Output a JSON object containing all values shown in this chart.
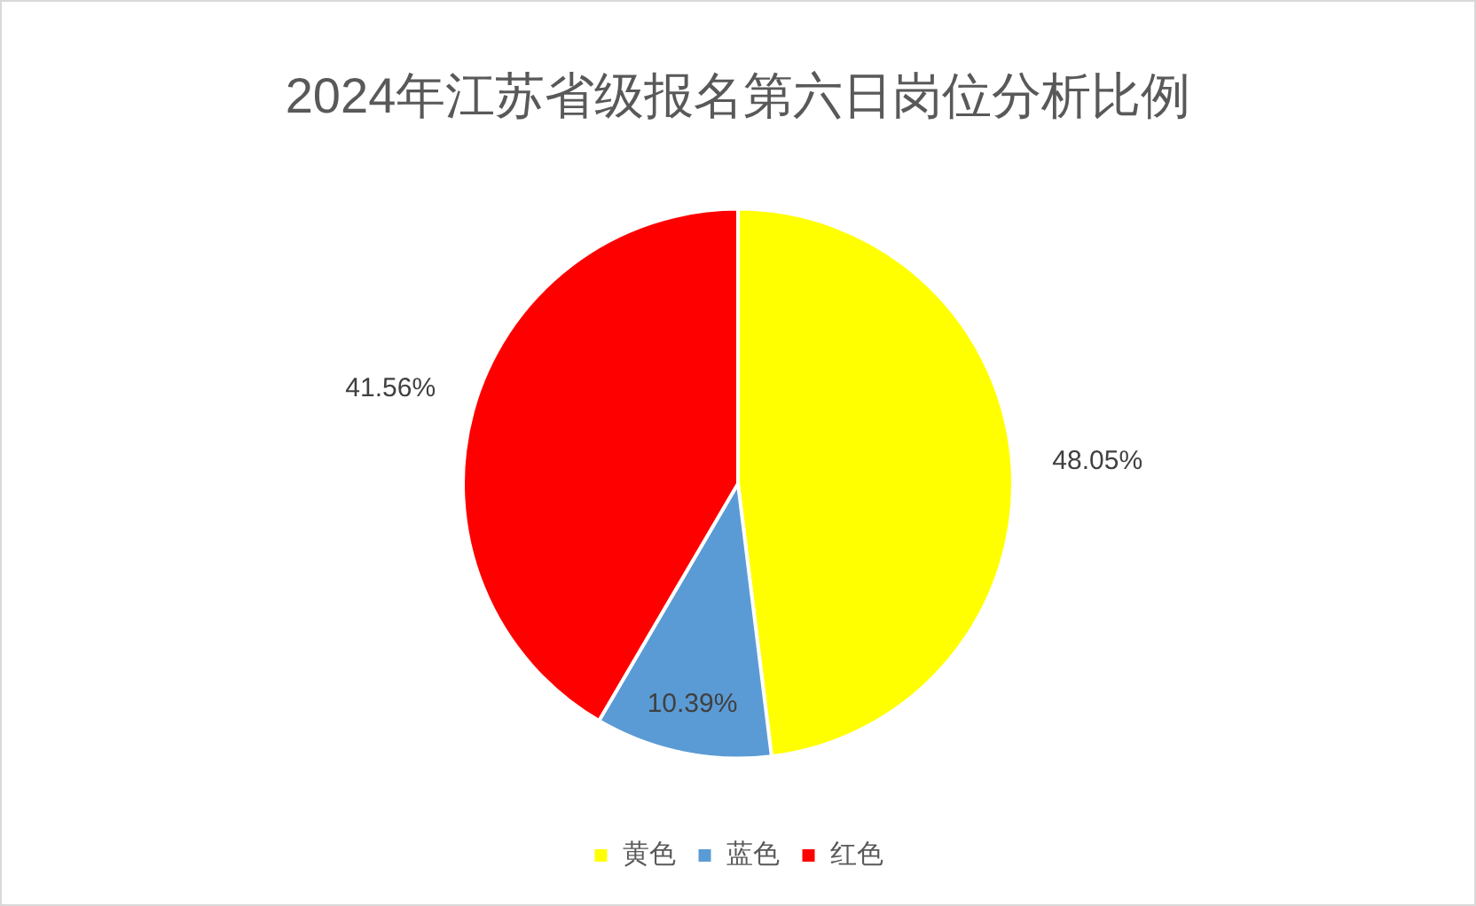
{
  "chart_data": {
    "type": "pie",
    "title": "2024年江苏省级报名第六日岗位分析比例",
    "categories": [
      "黄色",
      "蓝色",
      "红色"
    ],
    "values": [
      48.05,
      10.39,
      41.56
    ],
    "colors": [
      "#ffff00",
      "#5b9bd5",
      "#ff0000"
    ],
    "value_labels": [
      "48.05%",
      "10.39%",
      "41.56%"
    ],
    "legend": "bottom"
  }
}
